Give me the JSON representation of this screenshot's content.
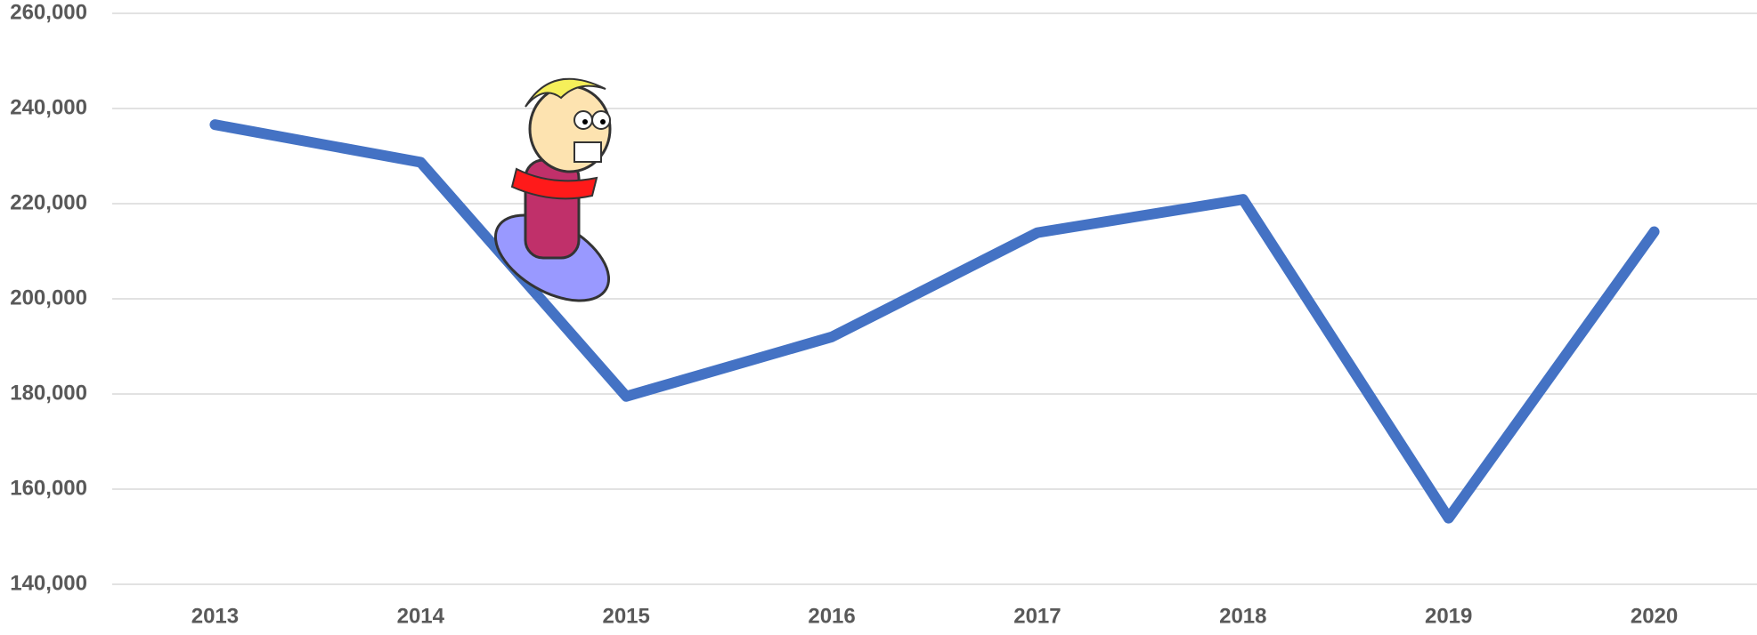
{
  "chart_data": {
    "type": "line",
    "categories": [
      "2013",
      "2014",
      "2015",
      "2016",
      "2017",
      "2018",
      "2019",
      "2020"
    ],
    "series": [
      {
        "color": "#4472c4",
        "values": [
          236600,
          228700,
          179500,
          192000,
          213900,
          220900,
          153900,
          214100
        ]
      }
    ],
    "ylim": [
      140000,
      260000
    ],
    "yticks": [
      {
        "value": 140000,
        "label": "140,000"
      },
      {
        "value": 160000,
        "label": "160,000"
      },
      {
        "value": 180000,
        "label": "180,000"
      },
      {
        "value": 200000,
        "label": "200,000"
      },
      {
        "value": 220000,
        "label": "220,000"
      },
      {
        "value": 240000,
        "label": "240,000"
      },
      {
        "value": 260000,
        "label": "260,000"
      }
    ],
    "grid": true
  }
}
